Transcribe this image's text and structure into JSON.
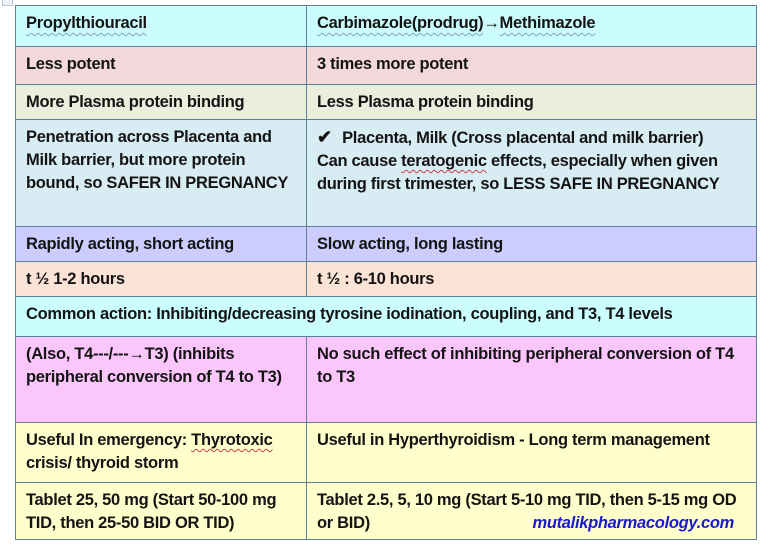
{
  "table": {
    "header": {
      "left": "Propylthiouracil",
      "right_prefix": "Carbimazole(prodrug)",
      "right_arrow": "→",
      "right_suffix": "Methimazole"
    },
    "rows": [
      {
        "left": "Less potent",
        "right": "3 times more potent"
      },
      {
        "left": "More Plasma protein binding",
        "right": "Less Plasma protein binding"
      },
      {
        "left": " Penetration across Placenta and Milk barrier, but more protein bound, so SAFER IN PREGNANCY",
        "right_check": "✔",
        "right_line1": " Placenta, Milk (Cross placental and milk barrier)",
        "right_line2_pre": "Can cause ",
        "right_line2_wavy": "teratogenic",
        "right_line2_post": " effects, especially when given during first trimester, so LESS SAFE IN PREGNANCY"
      },
      {
        "left": "Rapidly acting, short acting",
        "right": "Slow acting, long lasting"
      },
      {
        "left": "t ½ 1-2 hours",
        "right": "t ½ :  6-10 hours"
      },
      {
        "common": "Common action: Inhibiting/decreasing tyrosine iodination, coupling, and T3, T4 levels"
      },
      {
        "left": " (Also,  T4---/---→T3) (inhibits peripheral conversion of T4 to T3)",
        "right": "No such effect of inhibiting peripheral conversion of T4 to T3"
      },
      {
        "left_pre": "Useful In emergency:  ",
        "left_wavy": "Thyrotoxic",
        "left_post": " crisis/ thyroid storm",
        "right": "Useful in Hyperthyroidism - Long term management"
      },
      {
        "left": "Tablet 25, 50 mg (Start 50-100 mg TID, then 25-50 BID OR TID)",
        "right": "Tablet 2.5, 5, 10 mg (Start 5-10 mg TID, then 5-15 mg OD or BID)"
      }
    ]
  },
  "watermark": "mutalikpharmacology.com",
  "colors": {
    "header_bg": "#ccfdfe",
    "potency_bg": "#f3d9db",
    "binding_bg": "#e9eedd",
    "placenta_bg": "#d8ecf3",
    "onset_bg": "#ccccfe",
    "halflife_bg": "#fbe4d6",
    "common_bg": "#ccfdfe",
    "peripheral_bg": "#fbc6fc",
    "use_bg": "#fefecd",
    "watermark": "#1a1acc",
    "border": "#5f7f9a"
  }
}
